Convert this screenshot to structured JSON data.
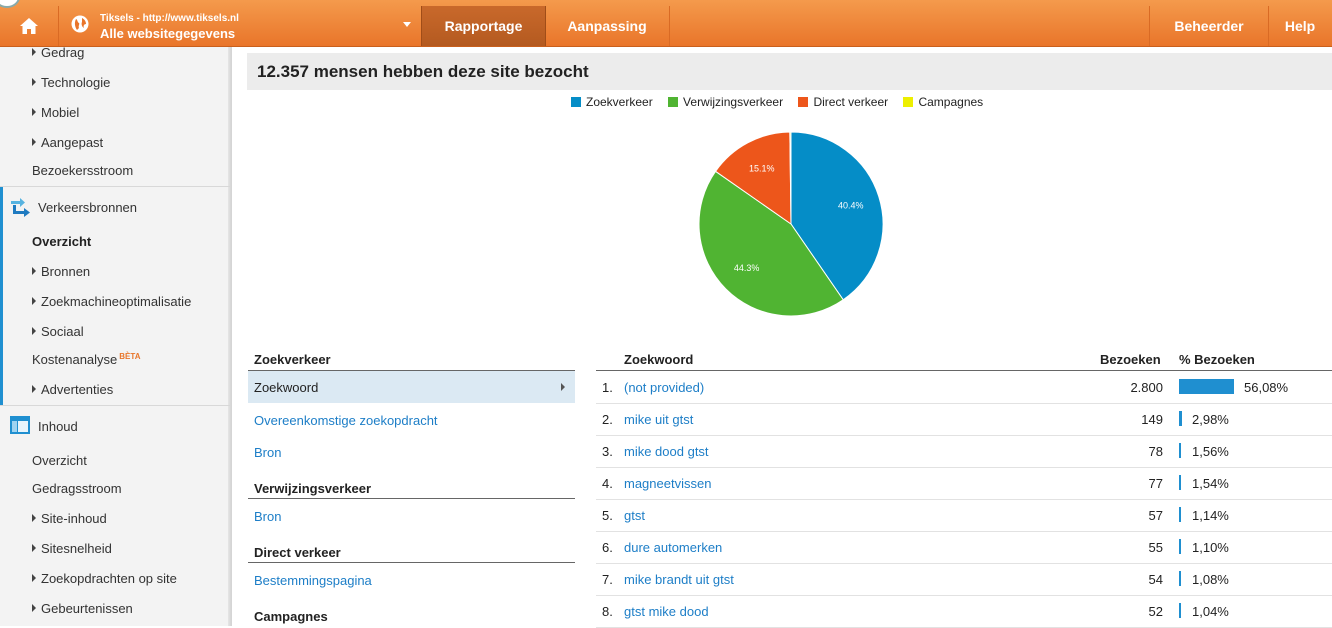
{
  "topbar": {
    "account_url_line": "Tiksels - http://www.tiksels.nl",
    "account_profile": "Alle websitegegevens",
    "tabs": {
      "reporting": "Rapportage",
      "customization": "Aanpassing",
      "admin": "Beheerder",
      "help": "Help"
    },
    "brand_color": "#ee8535"
  },
  "sidebar": {
    "items_top": [
      {
        "label": "Gedrag",
        "expandable": true
      },
      {
        "label": "Technologie",
        "expandable": true
      },
      {
        "label": "Mobiel",
        "expandable": true
      },
      {
        "label": "Aangepast",
        "expandable": true
      },
      {
        "label": "Bezoekersstroom",
        "expandable": false
      }
    ],
    "traffic_section": "Verkeersbronnen",
    "traffic_items": [
      {
        "label": "Overzicht",
        "active": true
      },
      {
        "label": "Bronnen",
        "expandable": true
      },
      {
        "label": "Zoekmachineoptimalisatie",
        "expandable": true
      },
      {
        "label": "Sociaal",
        "expandable": true
      },
      {
        "label": "Kostenanalyse",
        "badge": "BÈTA"
      },
      {
        "label": "Advertenties",
        "expandable": true
      }
    ],
    "content_section": "Inhoud",
    "content_items": [
      {
        "label": "Overzicht"
      },
      {
        "label": "Gedragsstroom"
      },
      {
        "label": "Site-inhoud",
        "expandable": true
      },
      {
        "label": "Sitesnelheid",
        "expandable": true
      },
      {
        "label": "Zoekopdrachten op site",
        "expandable": true
      },
      {
        "label": "Gebeurtenissen",
        "expandable": true
      }
    ]
  },
  "headline": "12.357 mensen hebben deze site bezocht",
  "chart_data": {
    "type": "pie",
    "series": [
      {
        "name": "Zoekverkeer",
        "value": 40.4,
        "color": "#058dc7",
        "label": "40.4%"
      },
      {
        "name": "Verwijzingsverkeer",
        "value": 44.3,
        "color": "#50b432",
        "label": "44.3%"
      },
      {
        "name": "Direct verkeer",
        "value": 15.1,
        "color": "#ed561b",
        "label": "15.1%"
      },
      {
        "name": "Campagnes",
        "value": 0.2,
        "color": "#edef00",
        "label": ""
      }
    ],
    "legend_position": "top"
  },
  "left_panel": {
    "search_header": "Zoekverkeer",
    "search_selected": "Zoekwoord",
    "search_link": "Overeenkomstige zoekopdracht",
    "search_source": "Bron",
    "referral_header": "Verwijzingsverkeer",
    "referral_source": "Bron",
    "direct_header": "Direct verkeer",
    "direct_link": "Bestemmingspagina",
    "campaigns_header": "Campagnes"
  },
  "table": {
    "headers": {
      "keyword": "Zoekwoord",
      "visits": "Bezoeken",
      "pct": "% Bezoeken"
    },
    "rows": [
      {
        "n": "1.",
        "keyword": "(not provided)",
        "visits": "2.800",
        "pct": "56,08%",
        "pct_value": 56.08
      },
      {
        "n": "2.",
        "keyword": "mike uit gtst",
        "visits": "149",
        "pct": "2,98%",
        "pct_value": 2.98
      },
      {
        "n": "3.",
        "keyword": "mike dood gtst",
        "visits": "78",
        "pct": "1,56%",
        "pct_value": 1.56
      },
      {
        "n": "4.",
        "keyword": "magneetvissen",
        "visits": "77",
        "pct": "1,54%",
        "pct_value": 1.54
      },
      {
        "n": "5.",
        "keyword": "gtst",
        "visits": "57",
        "pct": "1,14%",
        "pct_value": 1.14
      },
      {
        "n": "6.",
        "keyword": "dure automerken",
        "visits": "55",
        "pct": "1,10%",
        "pct_value": 1.1
      },
      {
        "n": "7.",
        "keyword": "mike brandt uit gtst",
        "visits": "54",
        "pct": "1,08%",
        "pct_value": 1.08
      },
      {
        "n": "8.",
        "keyword": "gtst mike dood",
        "visits": "52",
        "pct": "1,04%",
        "pct_value": 1.04
      }
    ]
  }
}
